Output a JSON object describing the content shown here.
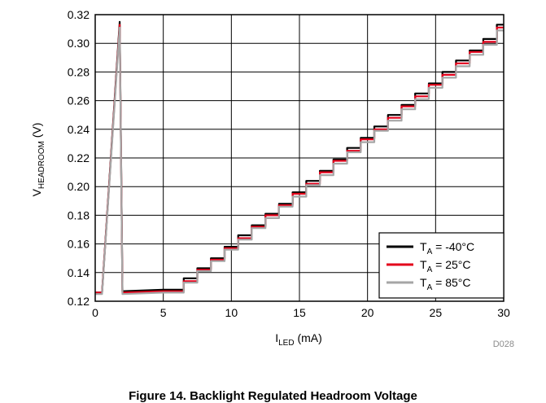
{
  "chart_data": {
    "type": "line",
    "xlabel": {
      "main": "I",
      "sub": "LED",
      "unit": " (mA)"
    },
    "ylabel": {
      "main": "V",
      "sub": "HEADROOM",
      "unit": " (V)"
    },
    "xlim": [
      0,
      30
    ],
    "ylim": [
      0.12,
      0.32
    ],
    "x_ticks": [
      "0",
      "5",
      "10",
      "15",
      "20",
      "25",
      "30"
    ],
    "y_ticks": [
      "0.12",
      "0.14",
      "0.16",
      "0.18",
      "0.20",
      "0.22",
      "0.24",
      "0.26",
      "0.28",
      "0.30",
      "0.32"
    ],
    "grid": true,
    "legend_position": "bottom-right",
    "series": [
      {
        "name": "-40°C",
        "color": "#000000",
        "points": [
          [
            0,
            0.126
          ],
          [
            0.5,
            0.126
          ],
          [
            1.8,
            0.315
          ],
          [
            2.0,
            0.127
          ],
          [
            5,
            0.128
          ],
          [
            6.5,
            0.128
          ],
          [
            6.5,
            0.136
          ],
          [
            7.5,
            0.136
          ],
          [
            7.5,
            0.143
          ],
          [
            8.5,
            0.143
          ],
          [
            8.5,
            0.15
          ],
          [
            9.5,
            0.15
          ],
          [
            9.5,
            0.158
          ],
          [
            10.5,
            0.158
          ],
          [
            10.5,
            0.166
          ],
          [
            11.5,
            0.166
          ],
          [
            11.5,
            0.173
          ],
          [
            12.5,
            0.173
          ],
          [
            12.5,
            0.181
          ],
          [
            13.5,
            0.181
          ],
          [
            13.5,
            0.188
          ],
          [
            14.5,
            0.188
          ],
          [
            14.5,
            0.196
          ],
          [
            15.5,
            0.196
          ],
          [
            15.5,
            0.204
          ],
          [
            16.5,
            0.204
          ],
          [
            16.5,
            0.211
          ],
          [
            17.5,
            0.211
          ],
          [
            17.5,
            0.219
          ],
          [
            18.5,
            0.219
          ],
          [
            18.5,
            0.227
          ],
          [
            19.5,
            0.227
          ],
          [
            19.5,
            0.234
          ],
          [
            20.5,
            0.234
          ],
          [
            20.5,
            0.242
          ],
          [
            21.5,
            0.242
          ],
          [
            21.5,
            0.25
          ],
          [
            22.5,
            0.25
          ],
          [
            22.5,
            0.257
          ],
          [
            23.5,
            0.257
          ],
          [
            23.5,
            0.265
          ],
          [
            24.5,
            0.265
          ],
          [
            24.5,
            0.272
          ],
          [
            25.5,
            0.272
          ],
          [
            25.5,
            0.28
          ],
          [
            26.5,
            0.28
          ],
          [
            26.5,
            0.288
          ],
          [
            27.5,
            0.288
          ],
          [
            27.5,
            0.295
          ],
          [
            28.5,
            0.295
          ],
          [
            28.5,
            0.303
          ],
          [
            29.5,
            0.303
          ],
          [
            29.5,
            0.313
          ],
          [
            30,
            0.313
          ]
        ]
      },
      {
        "name": "25°C",
        "color": "#e3001b",
        "points": [
          [
            0,
            0.126
          ],
          [
            0.5,
            0.126
          ],
          [
            1.8,
            0.313
          ],
          [
            2.0,
            0.126
          ],
          [
            5,
            0.127
          ],
          [
            6.5,
            0.127
          ],
          [
            6.5,
            0.134
          ],
          [
            7.5,
            0.134
          ],
          [
            7.5,
            0.142
          ],
          [
            8.5,
            0.142
          ],
          [
            8.5,
            0.149
          ],
          [
            9.5,
            0.149
          ],
          [
            9.5,
            0.157
          ],
          [
            10.5,
            0.157
          ],
          [
            10.5,
            0.164
          ],
          [
            11.5,
            0.164
          ],
          [
            11.5,
            0.172
          ],
          [
            12.5,
            0.172
          ],
          [
            12.5,
            0.18
          ],
          [
            13.5,
            0.18
          ],
          [
            13.5,
            0.187
          ],
          [
            14.5,
            0.187
          ],
          [
            14.5,
            0.195
          ],
          [
            15.5,
            0.195
          ],
          [
            15.5,
            0.202
          ],
          [
            16.5,
            0.202
          ],
          [
            16.5,
            0.21
          ],
          [
            17.5,
            0.21
          ],
          [
            17.5,
            0.218
          ],
          [
            18.5,
            0.218
          ],
          [
            18.5,
            0.225
          ],
          [
            19.5,
            0.225
          ],
          [
            19.5,
            0.233
          ],
          [
            20.5,
            0.233
          ],
          [
            20.5,
            0.24
          ],
          [
            21.5,
            0.24
          ],
          [
            21.5,
            0.248
          ],
          [
            22.5,
            0.248
          ],
          [
            22.5,
            0.256
          ],
          [
            23.5,
            0.256
          ],
          [
            23.5,
            0.263
          ],
          [
            24.5,
            0.263
          ],
          [
            24.5,
            0.271
          ],
          [
            25.5,
            0.271
          ],
          [
            25.5,
            0.278
          ],
          [
            26.5,
            0.278
          ],
          [
            26.5,
            0.286
          ],
          [
            27.5,
            0.286
          ],
          [
            27.5,
            0.294
          ],
          [
            28.5,
            0.294
          ],
          [
            28.5,
            0.301
          ],
          [
            29.5,
            0.301
          ],
          [
            29.5,
            0.311
          ],
          [
            30,
            0.311
          ]
        ]
      },
      {
        "name": "85°C",
        "color": "#a6a6a6",
        "points": [
          [
            0,
            0.125
          ],
          [
            0.5,
            0.125
          ],
          [
            1.8,
            0.311
          ],
          [
            2.0,
            0.125
          ],
          [
            5,
            0.126
          ],
          [
            6.5,
            0.126
          ],
          [
            6.5,
            0.133
          ],
          [
            7.5,
            0.133
          ],
          [
            7.5,
            0.141
          ],
          [
            8.5,
            0.141
          ],
          [
            8.5,
            0.148
          ],
          [
            9.5,
            0.148
          ],
          [
            9.5,
            0.156
          ],
          [
            10.5,
            0.156
          ],
          [
            10.5,
            0.163
          ],
          [
            11.5,
            0.163
          ],
          [
            11.5,
            0.171
          ],
          [
            12.5,
            0.171
          ],
          [
            12.5,
            0.178
          ],
          [
            13.5,
            0.178
          ],
          [
            13.5,
            0.186
          ],
          [
            14.5,
            0.186
          ],
          [
            14.5,
            0.193
          ],
          [
            15.5,
            0.193
          ],
          [
            15.5,
            0.201
          ],
          [
            16.5,
            0.201
          ],
          [
            16.5,
            0.208
          ],
          [
            17.5,
            0.208
          ],
          [
            17.5,
            0.216
          ],
          [
            18.5,
            0.216
          ],
          [
            18.5,
            0.224
          ],
          [
            19.5,
            0.224
          ],
          [
            19.5,
            0.231
          ],
          [
            20.5,
            0.231
          ],
          [
            20.5,
            0.239
          ],
          [
            21.5,
            0.239
          ],
          [
            21.5,
            0.246
          ],
          [
            22.5,
            0.246
          ],
          [
            22.5,
            0.254
          ],
          [
            23.5,
            0.254
          ],
          [
            23.5,
            0.261
          ],
          [
            24.5,
            0.261
          ],
          [
            24.5,
            0.269
          ],
          [
            25.5,
            0.269
          ],
          [
            25.5,
            0.276
          ],
          [
            26.5,
            0.276
          ],
          [
            26.5,
            0.284
          ],
          [
            27.5,
            0.284
          ],
          [
            27.5,
            0.292
          ],
          [
            28.5,
            0.292
          ],
          [
            28.5,
            0.299
          ],
          [
            29.5,
            0.299
          ],
          [
            29.5,
            0.309
          ],
          [
            30,
            0.309
          ]
        ]
      }
    ],
    "legend_prefix": {
      "main": "T",
      "sub": "A",
      "sep": " = "
    },
    "figure_code": "D028",
    "caption": "Figure 14. Backlight Regulated Headroom Voltage"
  }
}
